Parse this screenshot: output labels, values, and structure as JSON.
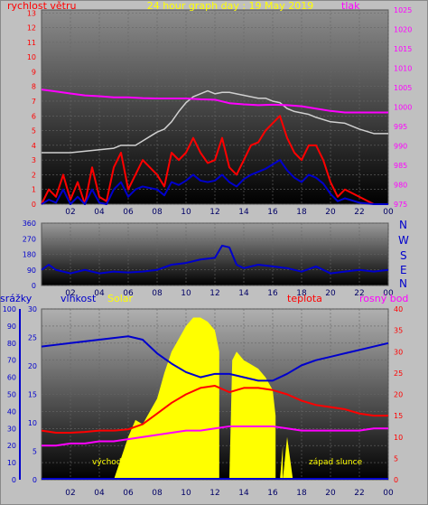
{
  "top_panel": {
    "title": "24 hour graph day : 19 May 2019",
    "label_left": "rychlost větru",
    "label_right": "tlak",
    "colors": {
      "title": "#ffff00",
      "left": "#ff0000",
      "right": "#ff00ff"
    }
  },
  "middle_panel": {
    "compass": [
      "N",
      "W",
      "S",
      "E",
      "N"
    ],
    "compass_color": "#0000cc"
  },
  "bottom_panel": {
    "label_srazky": "srážky",
    "label_vlhkost": "vlhkost",
    "label_solar": "Solar",
    "label_teplota": "teplota",
    "label_rosny": "rosný bod",
    "sunrise_label": "východ slunce",
    "sunset_label": "západ slunce",
    "colors": {
      "srazky": "#0000cc",
      "vlhkost": "#0000cc",
      "solar": "#ffff00",
      "teplota": "#ff0000",
      "rosny": "#ff00ff"
    }
  },
  "chart_data": [
    {
      "type": "line",
      "panel": "top",
      "x_ticks": [
        "02",
        "04",
        "06",
        "08",
        "10",
        "12",
        "14",
        "16",
        "18",
        "20",
        "22",
        "00"
      ],
      "y_left_ticks": [
        "0",
        "1",
        "2",
        "3",
        "4",
        "5",
        "6",
        "7",
        "8",
        "9",
        "10",
        "11",
        "12",
        "13"
      ],
      "y_right_ticks": [
        "975",
        "980",
        "985",
        "990",
        "995",
        "1000",
        "1005",
        "1010",
        "1015",
        "1020",
        "1025"
      ],
      "ylim_left": [
        0,
        13.2
      ],
      "ylim_right": [
        975,
        1025
      ],
      "series": [
        {
          "x": [
            0,
            2,
            4,
            5,
            5.5,
            6,
            6.5,
            7,
            7.5,
            8,
            8.5,
            9,
            9.5,
            10,
            10.5,
            11,
            11.5,
            12,
            12.5,
            13,
            13.5,
            14,
            14.5,
            15,
            15.5,
            16,
            16.5,
            17,
            17.5,
            18,
            18.5,
            19,
            20,
            21,
            22,
            23,
            24
          ],
          "values": [
            3.5,
            3.5,
            3.7,
            3.8,
            4.0,
            4.0,
            4.0,
            4.3,
            4.6,
            4.9,
            5.1,
            5.6,
            6.3,
            6.9,
            7.3,
            7.5,
            7.7,
            7.5,
            7.6,
            7.6,
            7.5,
            7.4,
            7.3,
            7.2,
            7.2,
            7.0,
            6.9,
            6.5,
            6.3,
            6.2,
            6.1,
            5.9,
            5.6,
            5.5,
            5.1,
            4.8,
            4.8
          ],
          "color": "#d0d0d0",
          "axis": "left"
        },
        {
          "x": [
            0,
            1,
            2,
            3,
            4,
            5,
            6,
            7,
            8,
            9,
            10,
            11,
            12,
            13,
            14,
            15,
            16,
            17,
            18,
            19,
            20,
            21,
            22,
            23,
            24
          ],
          "values": [
            1004.5,
            1004,
            1003.5,
            1003,
            1002.8,
            1002.5,
            1002.5,
            1002.3,
            1002.2,
            1002.2,
            1002.2,
            1002,
            1001.9,
            1001,
            1000.7,
            1000.5,
            1000.6,
            1000.5,
            1000.2,
            999.6,
            999,
            998.6,
            998.6,
            998.6,
            998.6
          ],
          "color": "#ff00ff",
          "axis": "right"
        },
        {
          "x": [
            0,
            0.5,
            1,
            1.5,
            2,
            2.5,
            3,
            3.5,
            4,
            4.5,
            5,
            5.5,
            6,
            6.5,
            7,
            7.5,
            8,
            8.5,
            9,
            9.5,
            10,
            10.5,
            11,
            11.5,
            12,
            12.5,
            13,
            13.5,
            14,
            14.5,
            15,
            15.5,
            16,
            16.5,
            17,
            17.5,
            18,
            18.5,
            19,
            19.5,
            20,
            20.5,
            21,
            22,
            23,
            24
          ],
          "values": [
            0,
            1,
            0.5,
            2,
            0.3,
            1.5,
            0,
            2.5,
            0.5,
            0.2,
            2.5,
            3.5,
            1,
            2,
            3,
            2.5,
            2,
            1.2,
            3.5,
            3,
            3.5,
            4.5,
            3.5,
            2.8,
            3,
            4.5,
            2.5,
            2,
            3,
            4,
            4.2,
            5,
            5.5,
            6,
            4.5,
            3.5,
            3,
            4,
            4,
            3,
            1.5,
            0.5,
            1,
            0.5,
            0,
            0
          ],
          "color": "#ff0000",
          "axis": "left"
        },
        {
          "x": [
            0,
            0.5,
            1,
            1.5,
            2,
            2.5,
            3,
            3.5,
            4,
            4.5,
            5,
            5.5,
            6,
            6.5,
            7,
            7.5,
            8,
            8.5,
            9,
            9.5,
            10,
            10.5,
            11,
            11.5,
            12,
            12.5,
            13,
            13.5,
            14,
            14.5,
            15,
            15.5,
            16,
            16.5,
            17,
            17.5,
            18,
            18.5,
            19,
            19.5,
            20,
            20.5,
            21,
            22,
            23,
            24
          ],
          "values": [
            0,
            0.3,
            0.1,
            1,
            0,
            0.5,
            0,
            1,
            0.1,
            0,
            1,
            1.5,
            0.5,
            1,
            1.2,
            1.1,
            1,
            0.6,
            1.5,
            1.3,
            1.6,
            2,
            1.6,
            1.5,
            1.6,
            2,
            1.5,
            1.2,
            1.7,
            2,
            2.2,
            2.4,
            2.7,
            3,
            2.3,
            1.8,
            1.5,
            2,
            1.8,
            1.4,
            0.7,
            0.2,
            0.4,
            0.1,
            0,
            0
          ],
          "color": "#0000cc",
          "axis": "left"
        }
      ]
    },
    {
      "type": "line",
      "panel": "middle",
      "x_ticks": [
        "02",
        "04",
        "06",
        "08",
        "10",
        "12",
        "14",
        "16",
        "18",
        "20",
        "22",
        "00"
      ],
      "y_ticks": [
        "360",
        "270",
        "180",
        "90",
        "0"
      ],
      "ylim": [
        0,
        360
      ],
      "series": [
        {
          "x": [
            0,
            0.5,
            1,
            2,
            3,
            4,
            5,
            6,
            7,
            8,
            9,
            10,
            11,
            12,
            12.5,
            13,
            13.5,
            14,
            15,
            16,
            17,
            18,
            19,
            20,
            21,
            22,
            23,
            24
          ],
          "values": [
            90,
            120,
            90,
            70,
            90,
            70,
            80,
            75,
            80,
            90,
            120,
            130,
            150,
            160,
            230,
            220,
            120,
            100,
            120,
            110,
            100,
            80,
            110,
            70,
            80,
            90,
            80,
            90
          ],
          "color": "#0000cc"
        }
      ]
    },
    {
      "type": "area",
      "panel": "bottom",
      "x_ticks": [
        "02",
        "04",
        "06",
        "08",
        "10",
        "12",
        "14",
        "16",
        "18",
        "20",
        "22",
        "00"
      ],
      "y_left1_ticks": [
        "0",
        "10",
        "20",
        "30",
        "40",
        "50",
        "60",
        "70",
        "80",
        "90",
        "100"
      ],
      "y_left2_ticks": [
        "0",
        "5",
        "10",
        "15",
        "20",
        "25",
        "30"
      ],
      "y_right_ticks": [
        "0",
        "5",
        "10",
        "15",
        "20",
        "25",
        "30",
        "35",
        "40"
      ],
      "ylim_vlhkost": [
        0,
        100
      ],
      "ylim_teplota": [
        0,
        40
      ],
      "series": [
        {
          "name": "vlhkost",
          "x": [
            0,
            1,
            2,
            3,
            4,
            5,
            6,
            7,
            8,
            9,
            10,
            11,
            12,
            13,
            14,
            15,
            16,
            17,
            18,
            19,
            20,
            21,
            22,
            23,
            24
          ],
          "values": [
            78,
            79,
            80,
            81,
            82,
            83,
            84,
            82,
            74,
            68,
            63,
            60,
            62,
            62,
            60,
            58,
            58,
            62,
            67,
            70,
            72,
            74,
            76,
            78,
            80
          ],
          "color": "#0000cc"
        },
        {
          "name": "teplota",
          "x": [
            0,
            1,
            2,
            3,
            4,
            5,
            6,
            7,
            8,
            9,
            10,
            11,
            12,
            13,
            14,
            15,
            16,
            17,
            18,
            19,
            20,
            21,
            22,
            23,
            24
          ],
          "values": [
            11.5,
            11,
            11,
            11.2,
            11.5,
            11.5,
            11.8,
            13,
            15.5,
            18,
            20,
            21.5,
            22,
            20.5,
            21.5,
            21.5,
            21,
            20,
            18.5,
            17.5,
            17,
            16.5,
            15.5,
            15,
            15
          ],
          "color": "#ff0000"
        },
        {
          "name": "rosný bod",
          "x": [
            0,
            1,
            2,
            3,
            4,
            5,
            6,
            7,
            8,
            9,
            10,
            11,
            12,
            13,
            14,
            15,
            16,
            17,
            18,
            19,
            20,
            21,
            22,
            23,
            24
          ],
          "values": [
            8,
            8,
            8.5,
            8.5,
            9,
            9,
            9.5,
            10,
            10.5,
            11,
            11.5,
            11.5,
            12,
            12.5,
            12.5,
            12.5,
            12.5,
            12,
            11.5,
            11.5,
            11.5,
            11.5,
            11.5,
            12,
            12
          ],
          "color": "#ff00ff"
        },
        {
          "name": "Solar",
          "x": [
            5,
            5.5,
            6,
            6.5,
            7,
            7.5,
            8,
            8.5,
            9,
            9.5,
            10,
            10.5,
            11,
            11.5,
            12,
            12.3,
            12.3,
            13,
            13.2,
            13.5,
            14,
            14.5,
            15,
            15.5,
            16,
            16.2,
            16.2,
            16.5,
            16.7,
            16.7,
            17,
            17.4,
            17.4,
            18,
            18.5
          ],
          "values": [
            0,
            5,
            10,
            14,
            13,
            16,
            19,
            25,
            30,
            33,
            36,
            38,
            38,
            37,
            35,
            30,
            0,
            0,
            28,
            30,
            28,
            27,
            26,
            24,
            21,
            15,
            0,
            0,
            8,
            0,
            10,
            0,
            0,
            0,
            0
          ],
          "color": "#ffff00"
        }
      ]
    }
  ]
}
